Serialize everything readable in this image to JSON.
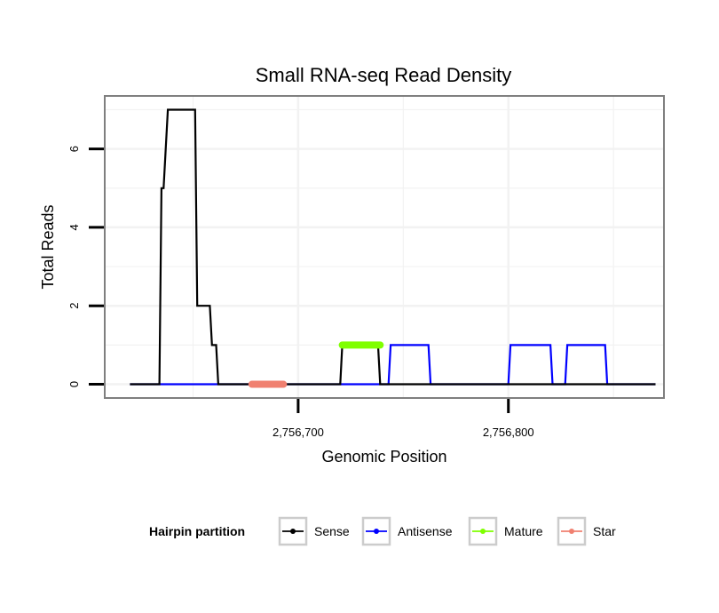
{
  "chart_data": {
    "type": "line",
    "title": "Small RNA-seq Read Density",
    "xlabel": "Genomic Position",
    "ylabel": "Total Reads",
    "xlim": [
      2756608,
      2756874
    ],
    "ylim": [
      -0.35,
      7.35
    ],
    "x_ticks": [
      2756700,
      2756800
    ],
    "x_tick_labels": [
      "2,756,700",
      "2,756,800"
    ],
    "y_ticks": [
      0,
      2,
      4,
      6
    ],
    "y_tick_labels": [
      "0",
      "2",
      "4",
      "6"
    ],
    "grid": true,
    "legend": {
      "title": "Hairpin partition",
      "position": "bottom",
      "entries": [
        "Sense",
        "Antisense",
        "Mature",
        "Star"
      ]
    },
    "colors": {
      "Sense": "#000000",
      "Antisense": "#0000ff",
      "Mature": "#7fff00",
      "Star": "#f08070",
      "grid": "#f2f2f2",
      "panel_border": "#7f7f7f"
    },
    "series": [
      {
        "name": "Sense",
        "x": [
          2756620,
          2756634,
          2756635,
          2756636,
          2756637,
          2756638,
          2756651,
          2756652,
          2756658,
          2756659,
          2756661,
          2756662,
          2756720,
          2756721,
          2756738,
          2756739,
          2756870
        ],
        "y": [
          0,
          0,
          5,
          5,
          6,
          7,
          7,
          2,
          2,
          1,
          1,
          0,
          0,
          1,
          1,
          0,
          0
        ]
      },
      {
        "name": "Antisense",
        "x": [
          2756620,
          2756743,
          2756744,
          2756762,
          2756763,
          2756800,
          2756801,
          2756820,
          2756821,
          2756827,
          2756828,
          2756846,
          2756847,
          2756870
        ],
        "y": [
          0,
          0,
          1,
          1,
          0,
          0,
          1,
          1,
          0,
          0,
          1,
          1,
          0,
          0
        ]
      },
      {
        "name": "Mature",
        "segments": [
          {
            "x_start": 2756721,
            "x_end": 2756739,
            "y": 1
          }
        ]
      },
      {
        "name": "Star",
        "segments": [
          {
            "x_start": 2756678,
            "x_end": 2756693,
            "y": 0
          }
        ]
      }
    ]
  }
}
